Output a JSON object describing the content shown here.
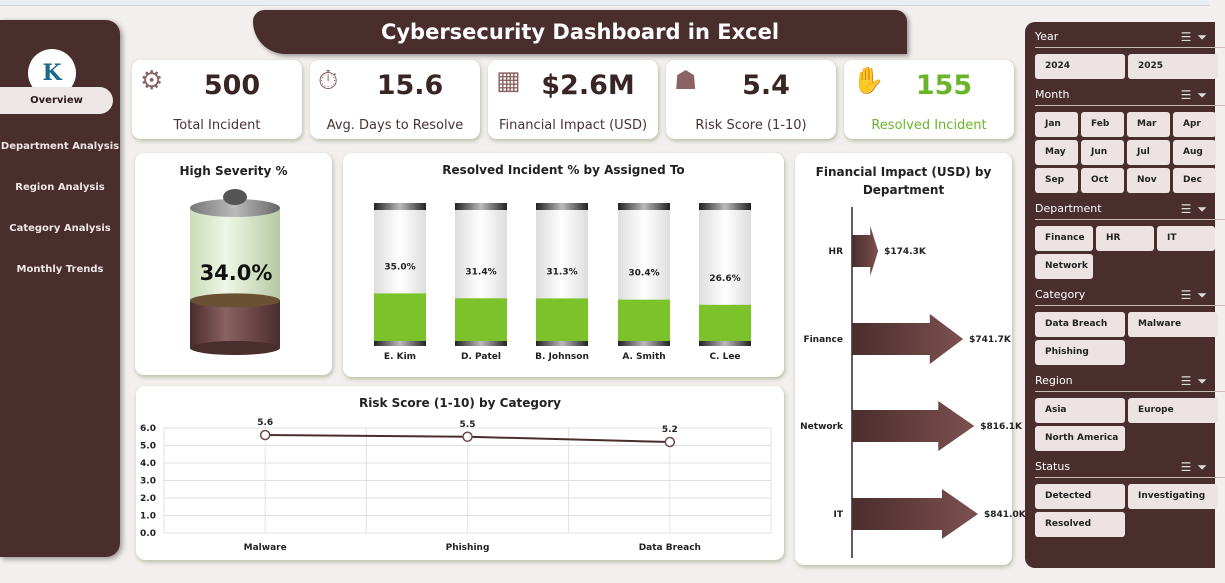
{
  "title": "Cybersecurity Dashboard in Excel",
  "logo_text": "K",
  "nav": [
    {
      "label": "Overview",
      "active": true
    },
    {
      "label": "Department Analysis"
    },
    {
      "label": "Region Analysis"
    },
    {
      "label": "Category Analysis"
    },
    {
      "label": "Monthly Trends"
    }
  ],
  "kpis": [
    {
      "value": "500",
      "label": "Total Incident",
      "icon": "gear-warning-icon",
      "icon_glyph": "⚙"
    },
    {
      "value": "15.6",
      "label": "Avg. Days to Resolve",
      "icon": "stopwatch-icon",
      "icon_glyph": "⏱"
    },
    {
      "value": "$2.6M",
      "label": "Financial Impact (USD)",
      "icon": "money-building-icon",
      "icon_glyph": "▦"
    },
    {
      "value": "5.4",
      "label": "Risk Score (1-10)",
      "icon": "risk-icon",
      "icon_glyph": "☗"
    },
    {
      "value": "155",
      "label": "Resolved Incident",
      "icon": "handshake-icon",
      "icon_glyph": "✋",
      "value_color": "#6ab52a"
    }
  ],
  "colors": {
    "brand": "#4a2d2d",
    "green": "#7cc22a",
    "arrow": "#6e3f3f"
  },
  "slicers": [
    {
      "title": "Year",
      "items": [
        "2024",
        "2025"
      ],
      "cols": 2
    },
    {
      "title": "Month",
      "items": [
        "Jan",
        "Feb",
        "Mar",
        "Apr",
        "May",
        "Jun",
        "Jul",
        "Aug",
        "Sep",
        "Oct",
        "Nov",
        "Dec"
      ],
      "cols": 4
    },
    {
      "title": "Department",
      "items": [
        "Finance",
        "HR",
        "IT",
        "Network"
      ],
      "cols": 3
    },
    {
      "title": "Category",
      "items": [
        "Data Breach",
        "Malware",
        "Phishing"
      ],
      "cols": 2
    },
    {
      "title": "Region",
      "items": [
        "Asia",
        "Europe",
        "North America"
      ],
      "cols": 2
    },
    {
      "title": "Status",
      "items": [
        "Detected",
        "Investigating",
        "Resolved"
      ],
      "cols": 2
    }
  ],
  "chart_data": [
    {
      "type": "gauge",
      "title": "High Severity %",
      "value": 34.0,
      "label": "34.0%"
    },
    {
      "type": "bar",
      "title": "Resolved Incident % by Assigned To",
      "categories": [
        "E. Kim",
        "D. Patel",
        "B. Johnson",
        "A. Smith",
        "C. Lee"
      ],
      "values": [
        35.0,
        31.4,
        31.3,
        30.4,
        26.6
      ],
      "labels": [
        "35.0%",
        "31.4%",
        "31.3%",
        "30.4%",
        "26.6%"
      ],
      "ylim": [
        0,
        100
      ]
    },
    {
      "type": "bar",
      "orientation": "horizontal",
      "title": "Financial Impact (USD) by Department",
      "categories": [
        "HR",
        "Finance",
        "Network",
        "IT"
      ],
      "values": [
        174.3,
        741.7,
        816.1,
        841.0
      ],
      "unit": "$K",
      "labels": [
        "$174.3K",
        "$741.7K",
        "$816.1K",
        "$841.0K"
      ]
    },
    {
      "type": "line",
      "title": "Risk Score (1-10) by Category",
      "categories": [
        "Malware",
        "Phishing",
        "Data Breach"
      ],
      "values": [
        5.6,
        5.5,
        5.2
      ],
      "labels": [
        "5.6",
        "5.5",
        "5.2"
      ],
      "ylim": [
        0,
        6
      ],
      "yticks": [
        "0.0",
        "1.0",
        "2.0",
        "3.0",
        "4.0",
        "5.0",
        "6.0"
      ],
      "grid": true
    }
  ]
}
